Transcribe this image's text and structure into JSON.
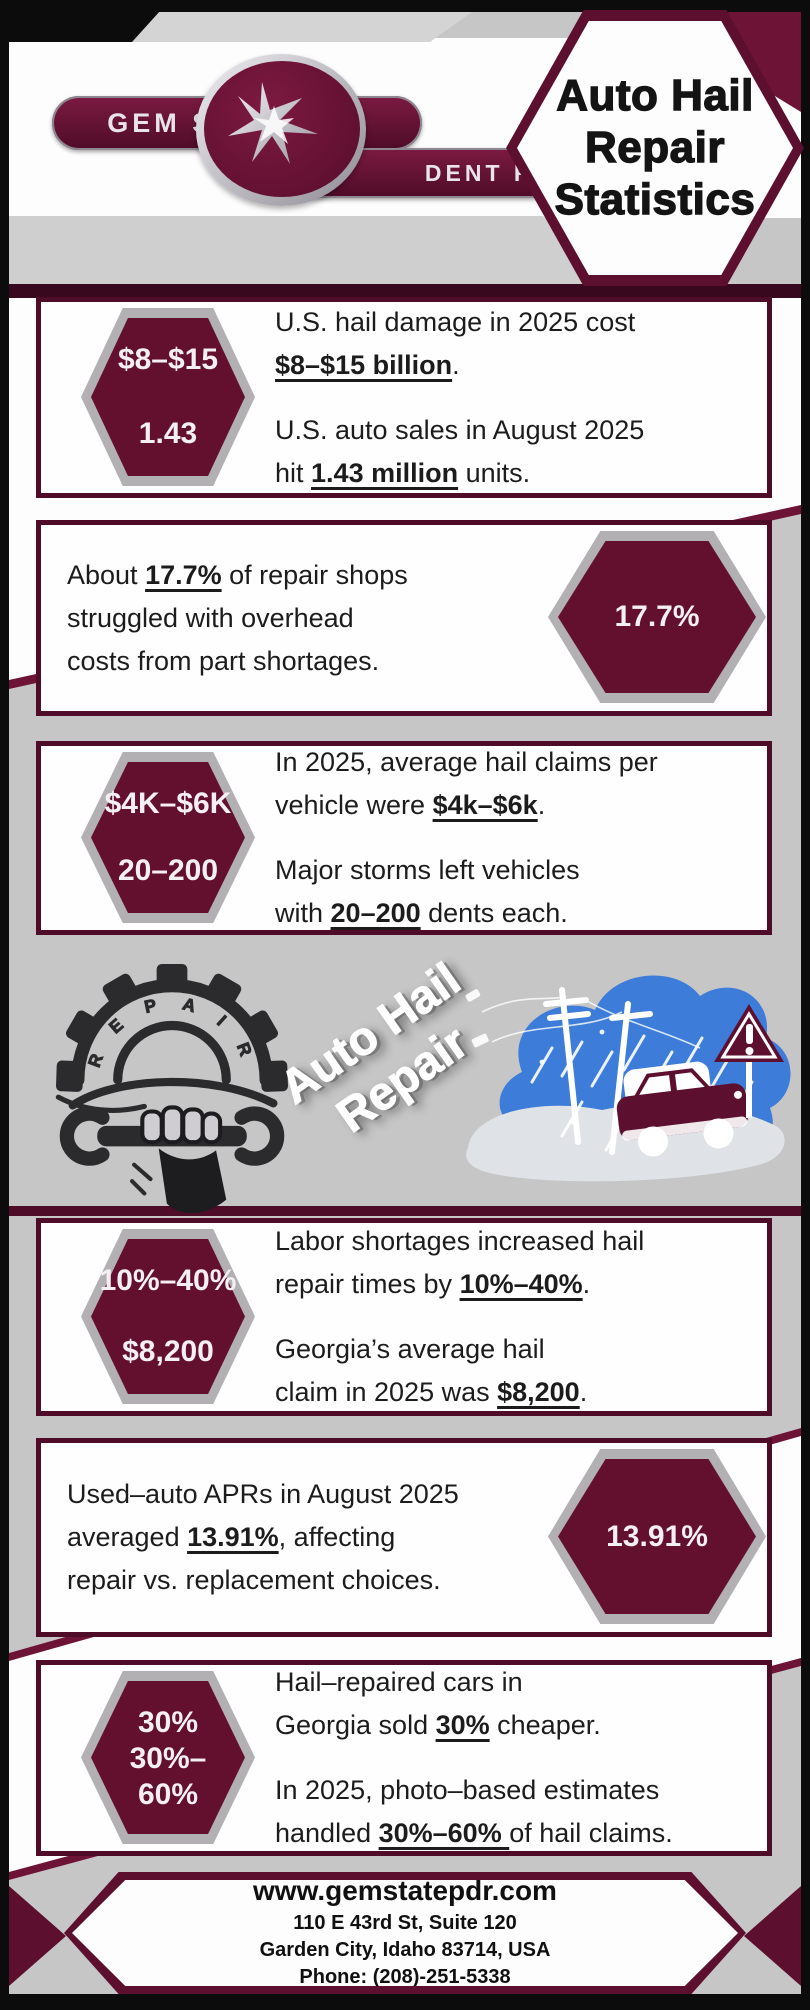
{
  "colors": {
    "maroon_dark": "#4f0c29",
    "maroon": "#5c0f2e",
    "maroon_badge": "#63102f",
    "ribbon": "#6d1336",
    "silver": "#b3b0b3",
    "page_gray": "#c7c6c7",
    "white": "#fdfdfd",
    "black": "#0c0c0c",
    "storm_blue": "#3d7cd9"
  },
  "header": {
    "logo": {
      "left": "GEM STATE",
      "right": "DENT REPAIR"
    },
    "title_lines": [
      "Auto Hail",
      "Repair",
      "Statistics"
    ]
  },
  "watermark": {
    "line1": "Auto Hail",
    "line2": "Repair"
  },
  "illustrations": {
    "gear_text": "R E P A I R",
    "gear_icon": "repair-gear-wrench-fist",
    "storm_icon": "hail-storm-car-warning"
  },
  "cards": [
    {
      "badge_side": "left",
      "badge": {
        "labels": [
          "$8–$15",
          "1.43"
        ]
      },
      "paragraphs": [
        {
          "lines": [
            [
              {
                "t": "U.S. hail damage in 2025 cost"
              }
            ],
            [
              {
                "t": "$8–$15 billion",
                "stat": true
              },
              {
                "t": "."
              }
            ]
          ]
        },
        {
          "lines": [
            [
              {
                "t": "U.S. auto sales in August 2025"
              }
            ],
            [
              {
                "t": "hit "
              },
              {
                "t": "1.43 million",
                "stat": true
              },
              {
                "t": " units."
              }
            ]
          ]
        }
      ]
    },
    {
      "badge_side": "right",
      "badge": {
        "labels": [
          "17.7%"
        ]
      },
      "paragraphs": [
        {
          "lines": [
            [
              {
                "t": "About "
              },
              {
                "t": "17.7%",
                "stat": true
              },
              {
                "t": " of repair shops"
              }
            ],
            [
              {
                "t": "struggled with overhead"
              }
            ],
            [
              {
                "t": "costs from part shortages."
              }
            ]
          ]
        }
      ]
    },
    {
      "badge_side": "left",
      "badge": {
        "labels": [
          "$4K–$6K",
          "20–200"
        ]
      },
      "paragraphs": [
        {
          "lines": [
            [
              {
                "t": "In 2025, average hail claims per"
              }
            ],
            [
              {
                "t": "vehicle were "
              },
              {
                "t": "$4k–$6k",
                "stat": true
              },
              {
                "t": "."
              }
            ]
          ]
        },
        {
          "lines": [
            [
              {
                "t": "Major storms left vehicles"
              }
            ],
            [
              {
                "t": "with "
              },
              {
                "t": "20–200",
                "stat": true
              },
              {
                "t": " dents each."
              }
            ]
          ]
        }
      ]
    },
    {
      "badge_side": "left",
      "badge": {
        "labels": [
          "10%–40%",
          "$8,200"
        ]
      },
      "paragraphs": [
        {
          "lines": [
            [
              {
                "t": "Labor shortages increased hail"
              }
            ],
            [
              {
                "t": "repair times by "
              },
              {
                "t": "10%–40%",
                "stat": true
              },
              {
                "t": "."
              }
            ]
          ]
        },
        {
          "lines": [
            [
              {
                "t": "Georgia’s average hail"
              }
            ],
            [
              {
                "t": "claim in 2025 was "
              },
              {
                "t": "$8,200",
                "stat": true
              },
              {
                "t": "."
              }
            ]
          ]
        }
      ]
    },
    {
      "badge_side": "right",
      "badge": {
        "labels": [
          "13.91%"
        ]
      },
      "paragraphs": [
        {
          "lines": [
            [
              {
                "t": "Used–auto APRs in August 2025"
              }
            ],
            [
              {
                "t": "averaged "
              },
              {
                "t": "13.91%",
                "stat": true
              },
              {
                "t": ", affecting"
              }
            ],
            [
              {
                "t": "repair vs. replacement choices."
              }
            ]
          ]
        }
      ]
    },
    {
      "badge_side": "left",
      "badge": {
        "labels": [
          "30%",
          "30%–\n60%"
        ]
      },
      "paragraphs": [
        {
          "lines": [
            [
              {
                "t": "Hail–repaired cars in"
              }
            ],
            [
              {
                "t": "Georgia sold "
              },
              {
                "t": "30%",
                "stat": true
              },
              {
                "t": " cheaper."
              }
            ]
          ]
        },
        {
          "lines": [
            [
              {
                "t": "In 2025, photo–based estimates"
              }
            ],
            [
              {
                "t": "handled "
              },
              {
                "t": "30%–60% ",
                "stat": true
              },
              {
                "t": "of hail claims."
              }
            ]
          ]
        }
      ]
    }
  ],
  "footer": {
    "website": "www.gemstatepdr.com",
    "address1": "110 E 43rd St, Suite 120",
    "address2": "Garden City, Idaho 83714, USA",
    "phone": "Phone: (208)-251-5338"
  }
}
